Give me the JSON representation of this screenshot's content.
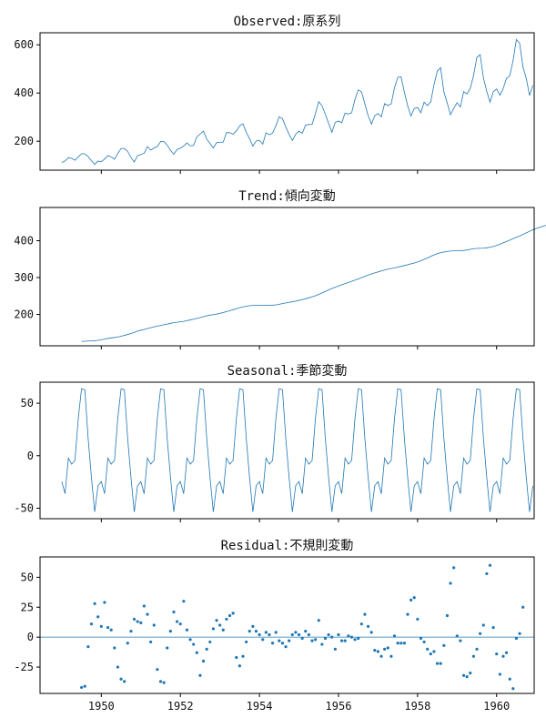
{
  "colors": {
    "series": "#1f77b4",
    "axis": "#000000"
  },
  "chart_data": [
    {
      "type": "line",
      "title": "Observed:原系列",
      "x_start": 1949.0,
      "x_step": 0.0833333,
      "xlim": [
        1948.45,
        1960.95
      ],
      "ylim": [
        80,
        650
      ],
      "yticks": [
        200,
        400,
        600
      ],
      "xticks": [
        1950,
        1952,
        1954,
        1956,
        1958,
        1960
      ],
      "show_xticklabels": false,
      "values": [
        112,
        118,
        132,
        129,
        121,
        135,
        148,
        148,
        136,
        119,
        104,
        118,
        115,
        126,
        141,
        135,
        125,
        149,
        170,
        170,
        158,
        133,
        114,
        140,
        145,
        150,
        178,
        163,
        172,
        178,
        199,
        199,
        184,
        162,
        146,
        166,
        171,
        180,
        193,
        181,
        183,
        218,
        230,
        242,
        209,
        191,
        172,
        194,
        196,
        196,
        236,
        235,
        229,
        243,
        264,
        272,
        237,
        211,
        180,
        201,
        204,
        188,
        235,
        227,
        234,
        264,
        302,
        293,
        259,
        229,
        203,
        229,
        242,
        233,
        267,
        269,
        270,
        315,
        364,
        347,
        312,
        274,
        237,
        278,
        284,
        277,
        317,
        313,
        318,
        374,
        413,
        405,
        355,
        306,
        271,
        306,
        315,
        301,
        356,
        348,
        355,
        422,
        465,
        467,
        404,
        347,
        305,
        336,
        340,
        318,
        362,
        348,
        363,
        435,
        491,
        505,
        404,
        359,
        310,
        337,
        360,
        342,
        406,
        396,
        420,
        472,
        548,
        559,
        463,
        407,
        362,
        405,
        417,
        391,
        419,
        461,
        472,
        535,
        622,
        606,
        508,
        461,
        390,
        432
      ]
    },
    {
      "type": "line",
      "title": "Trend:傾向変動",
      "x_start": 1949.5,
      "x_step": 0.0833333,
      "xlim": [
        1948.45,
        1960.95
      ],
      "ylim": [
        115,
        490
      ],
      "yticks": [
        200,
        300,
        400
      ],
      "xticks": [
        1950,
        1952,
        1954,
        1956,
        1958,
        1960
      ],
      "show_xticklabels": false,
      "values": [
        126.8,
        127.3,
        127.9,
        128.6,
        129.0,
        129.8,
        131.3,
        133.1,
        134.9,
        136.4,
        137.4,
        138.8,
        140.9,
        143.2,
        145.7,
        148.4,
        151.5,
        154.7,
        157.1,
        159.5,
        161.8,
        164.0,
        166.2,
        168.3,
        170.2,
        172.0,
        174.0,
        175.9,
        177.6,
        178.8,
        180.0,
        181.3,
        183.1,
        185.2,
        187.2,
        189.3,
        191.5,
        193.9,
        196.1,
        198.1,
        199.6,
        200.9,
        202.8,
        205.2,
        207.9,
        210.4,
        212.9,
        215.5,
        218.3,
        220.5,
        222.3,
        223.5,
        224.4,
        224.7,
        224.8,
        224.7,
        224.4,
        224.4,
        224.9,
        226.0,
        227.6,
        229.5,
        231.2,
        232.9,
        234.5,
        236.2,
        238.2,
        240.3,
        242.5,
        245.0,
        247.8,
        250.8,
        254.5,
        258.4,
        262.4,
        266.5,
        270.3,
        273.8,
        277.2,
        280.6,
        283.8,
        286.8,
        289.8,
        292.8,
        296.2,
        299.8,
        303.4,
        306.8,
        309.8,
        312.6,
        315.3,
        318.0,
        320.5,
        322.8,
        324.6,
        326.3,
        328.3,
        330.4,
        332.6,
        334.9,
        337.2,
        339.5,
        342.4,
        345.6,
        349.3,
        353.2,
        357.4,
        361.5,
        364.9,
        367.5,
        369.3,
        370.6,
        371.8,
        372.6,
        372.8,
        372.9,
        373.5,
        374.8,
        376.5,
        378.3,
        379.0,
        379.2,
        379.6,
        380.7,
        382.3,
        384.3,
        387.1,
        390.4,
        394.0,
        397.7,
        401.6,
        405.4,
        409.1,
        412.7,
        416.9,
        421.2,
        425.4,
        429.5,
        432.9,
        435.7,
        438.7,
        441.6,
        444.5,
        447.6,
        451.3,
        455.4,
        459.6,
        463.3,
        466.8,
        469.6,
        471.8,
        473.8
      ]
    },
    {
      "type": "line",
      "title": "Seasonal:季節変動",
      "x_start": 1949.0,
      "x_step": 0.0833333,
      "xlim": [
        1948.45,
        1960.95
      ],
      "ylim": [
        -60,
        70
      ],
      "yticks": [
        -50,
        0,
        50
      ],
      "xticks": [
        1950,
        1952,
        1954,
        1956,
        1958,
        1960
      ],
      "show_xticklabels": false,
      "pattern": [
        -24.7,
        -36.2,
        -2.2,
        -8.0,
        -4.5,
        35.4,
        63.8,
        62.8,
        16.5,
        -20.6,
        -53.6,
        -28.6
      ],
      "cycles": 12
    },
    {
      "type": "scatter",
      "title": "Residual:不規則変動",
      "x_start": 1949.5,
      "x_step": 0.0833333,
      "xlim": [
        1948.45,
        1960.95
      ],
      "ylim": [
        -47,
        67
      ],
      "yticks": [
        -25,
        0,
        25,
        50
      ],
      "xticks": [
        1950,
        1952,
        1954,
        1956,
        1958,
        1960
      ],
      "xticklabels": [
        "1950",
        "1952",
        "1954",
        "1956",
        "1958",
        "1960"
      ],
      "show_xticklabels": true,
      "baseline": 0,
      "values": [
        -42,
        -41,
        -8,
        11,
        28,
        17,
        9,
        29,
        8,
        6,
        -9,
        -25,
        -35,
        -37,
        -5,
        5,
        15,
        13,
        12,
        26,
        19,
        -4,
        10,
        -27,
        -37,
        -38,
        -9,
        5,
        21,
        13,
        11,
        30,
        6,
        -2,
        -6,
        -13,
        -32,
        -20,
        -10,
        -4,
        7,
        14,
        10,
        6,
        15,
        18,
        20,
        -17,
        -24,
        -16,
        -4,
        5,
        9,
        5,
        2,
        -2,
        4,
        2,
        -5,
        4,
        -3,
        -5,
        -8,
        -3,
        2,
        4,
        2,
        -1,
        5,
        2,
        -3,
        -2,
        14,
        -6,
        -1,
        2,
        0,
        -10,
        2,
        -3,
        -3,
        1,
        0,
        -2,
        -1,
        11,
        19,
        9,
        4,
        -11,
        -12,
        -16,
        -10,
        -9,
        -16,
        1,
        -5,
        -5,
        -5,
        19,
        31,
        33,
        15,
        -1,
        -4,
        -10,
        -14,
        -12,
        -22,
        -22,
        -7,
        18,
        45,
        58,
        1,
        -3,
        -32,
        -33,
        -30,
        -16,
        -10,
        3,
        10,
        53,
        60,
        8,
        -14,
        -31,
        -16,
        -13,
        -35,
        -43,
        -1,
        3,
        25
      ]
    }
  ]
}
